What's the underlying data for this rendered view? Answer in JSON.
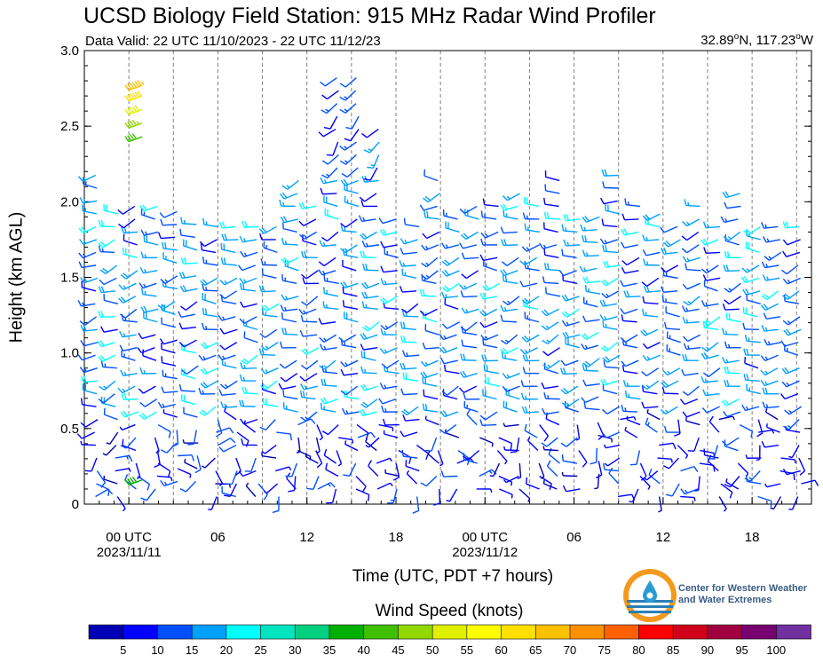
{
  "header": {
    "title": "UCSD Biology Field Station: 915 MHz Radar Wind Profiler",
    "valid": "Data Valid: 22 UTC 11/10/2023 - 22 UTC 11/12/23",
    "coords_lat": "32.89",
    "coords_lon": "117.23",
    "coords_deg": "o",
    "lat_suffix": "N, ",
    "lon_suffix": "W"
  },
  "logo": {
    "line1": "Center for Western Weather",
    "line2": "and Water Extremes"
  },
  "chart_data": {
    "type": "wind-barb-profile",
    "title": "UCSD Biology Field Station: 915 MHz Radar Wind Profiler",
    "xlabel": "Time (UTC, PDT +7 hours)",
    "ylabel": "Height (km AGL)",
    "ylim": [
      0,
      3.0
    ],
    "yticks": [
      0,
      0.5,
      1.0,
      1.5,
      2.0,
      2.5,
      3.0
    ],
    "ytick_labels": [
      "0",
      "0.5",
      "1.0",
      "1.5",
      "2.0",
      "2.5",
      "3.0"
    ],
    "x_range_hours": [
      -3,
      22
    ],
    "xticks": [
      {
        "hour": 0,
        "label": "00 UTC",
        "sublabel": "2023/11/11"
      },
      {
        "hour": 6,
        "label": "06",
        "sublabel": ""
      },
      {
        "hour": 12,
        "label": "12",
        "sublabel": ""
      },
      {
        "hour": 18,
        "label": "18",
        "sublabel": ""
      },
      {
        "hour": 24,
        "label": "00 UTC",
        "sublabel": "2023/11/12"
      },
      {
        "hour": 30,
        "label": "06",
        "sublabel": ""
      },
      {
        "hour": 36,
        "label": "12",
        "sublabel": ""
      },
      {
        "hour": 42,
        "label": "18",
        "sublabel": ""
      }
    ],
    "x_start_hour": -3,
    "x_end_hour": 46,
    "grid": "dashed vertical every 3 hours",
    "colorbar": {
      "title": "Wind Speed (knots)",
      "labels": [
        "5",
        "10",
        "15",
        "20",
        "25",
        "30",
        "35",
        "40",
        "45",
        "50",
        "55",
        "60",
        "65",
        "70",
        "75",
        "80",
        "85",
        "90",
        "95",
        "100"
      ],
      "colors": [
        "#0000b4",
        "#0000ff",
        "#0050ff",
        "#00a0ff",
        "#00ffff",
        "#00e4c0",
        "#00d080",
        "#00b000",
        "#40c000",
        "#90d800",
        "#e0f000",
        "#ffff00",
        "#ffe000",
        "#ffc000",
        "#ff9000",
        "#ff6000",
        "#ff0000",
        "#d0001a",
        "#a00040",
        "#780070",
        "#7030a0"
      ]
    },
    "profile": [
      {
        "h_max": 2.2,
        "h_min": 0.05
      },
      {
        "h_max": 1.95,
        "h_min": 0.05
      },
      {
        "h_max": 2.0,
        "h_min": 0.1
      },
      {
        "h_max": 2.0,
        "h_min": 0.1
      },
      {
        "h_max": 2.0,
        "h_min": 0.15
      },
      {
        "h_max": 1.9,
        "h_min": 0.15
      },
      {
        "h_max": 1.9,
        "h_min": 0.05
      },
      {
        "h_max": 1.85,
        "h_min": 0.05
      },
      {
        "h_max": 1.9,
        "h_min": 0.05
      },
      {
        "h_max": 1.9,
        "h_min": 0.05
      },
      {
        "h_max": 2.2,
        "h_min": 0.1
      },
      {
        "h_max": 2.0,
        "h_min": 0.1
      },
      {
        "h_max": 2.9,
        "h_min": 0.1
      },
      {
        "h_max": 2.9,
        "h_min": 0.1
      },
      {
        "h_max": 2.5,
        "h_min": 0.1
      },
      {
        "h_max": 1.9,
        "h_min": 0.1
      },
      {
        "h_max": 1.9,
        "h_min": 0.05
      },
      {
        "h_max": 2.2,
        "h_min": 0.1
      },
      {
        "h_max": 1.9,
        "h_min": 0.1
      },
      {
        "h_max": 2.0,
        "h_min": 0.1
      },
      {
        "h_max": 2.0,
        "h_min": 0.1
      },
      {
        "h_max": 2.1,
        "h_min": 0.1
      },
      {
        "h_max": 2.0,
        "h_min": 0.1
      },
      {
        "h_max": 2.2,
        "h_min": 0.1
      },
      {
        "h_max": 1.9,
        "h_min": 0.1
      },
      {
        "h_max": 1.9,
        "h_min": 0.2
      },
      {
        "h_max": 2.2,
        "h_min": 0.05
      },
      {
        "h_max": 2.0,
        "h_min": 0.1
      },
      {
        "h_max": 2.0,
        "h_min": 0.05
      },
      {
        "h_max": 1.9,
        "h_min": 0.05
      },
      {
        "h_max": 2.0,
        "h_min": 0.1
      },
      {
        "h_max": 1.9,
        "h_min": 0.05
      },
      {
        "h_max": 2.1,
        "h_min": 0.1
      },
      {
        "h_max": 1.9,
        "h_min": 0.05
      },
      {
        "h_max": 1.9,
        "h_min": 0.05
      },
      {
        "h_max": 1.9,
        "h_min": 0.05
      }
    ]
  }
}
